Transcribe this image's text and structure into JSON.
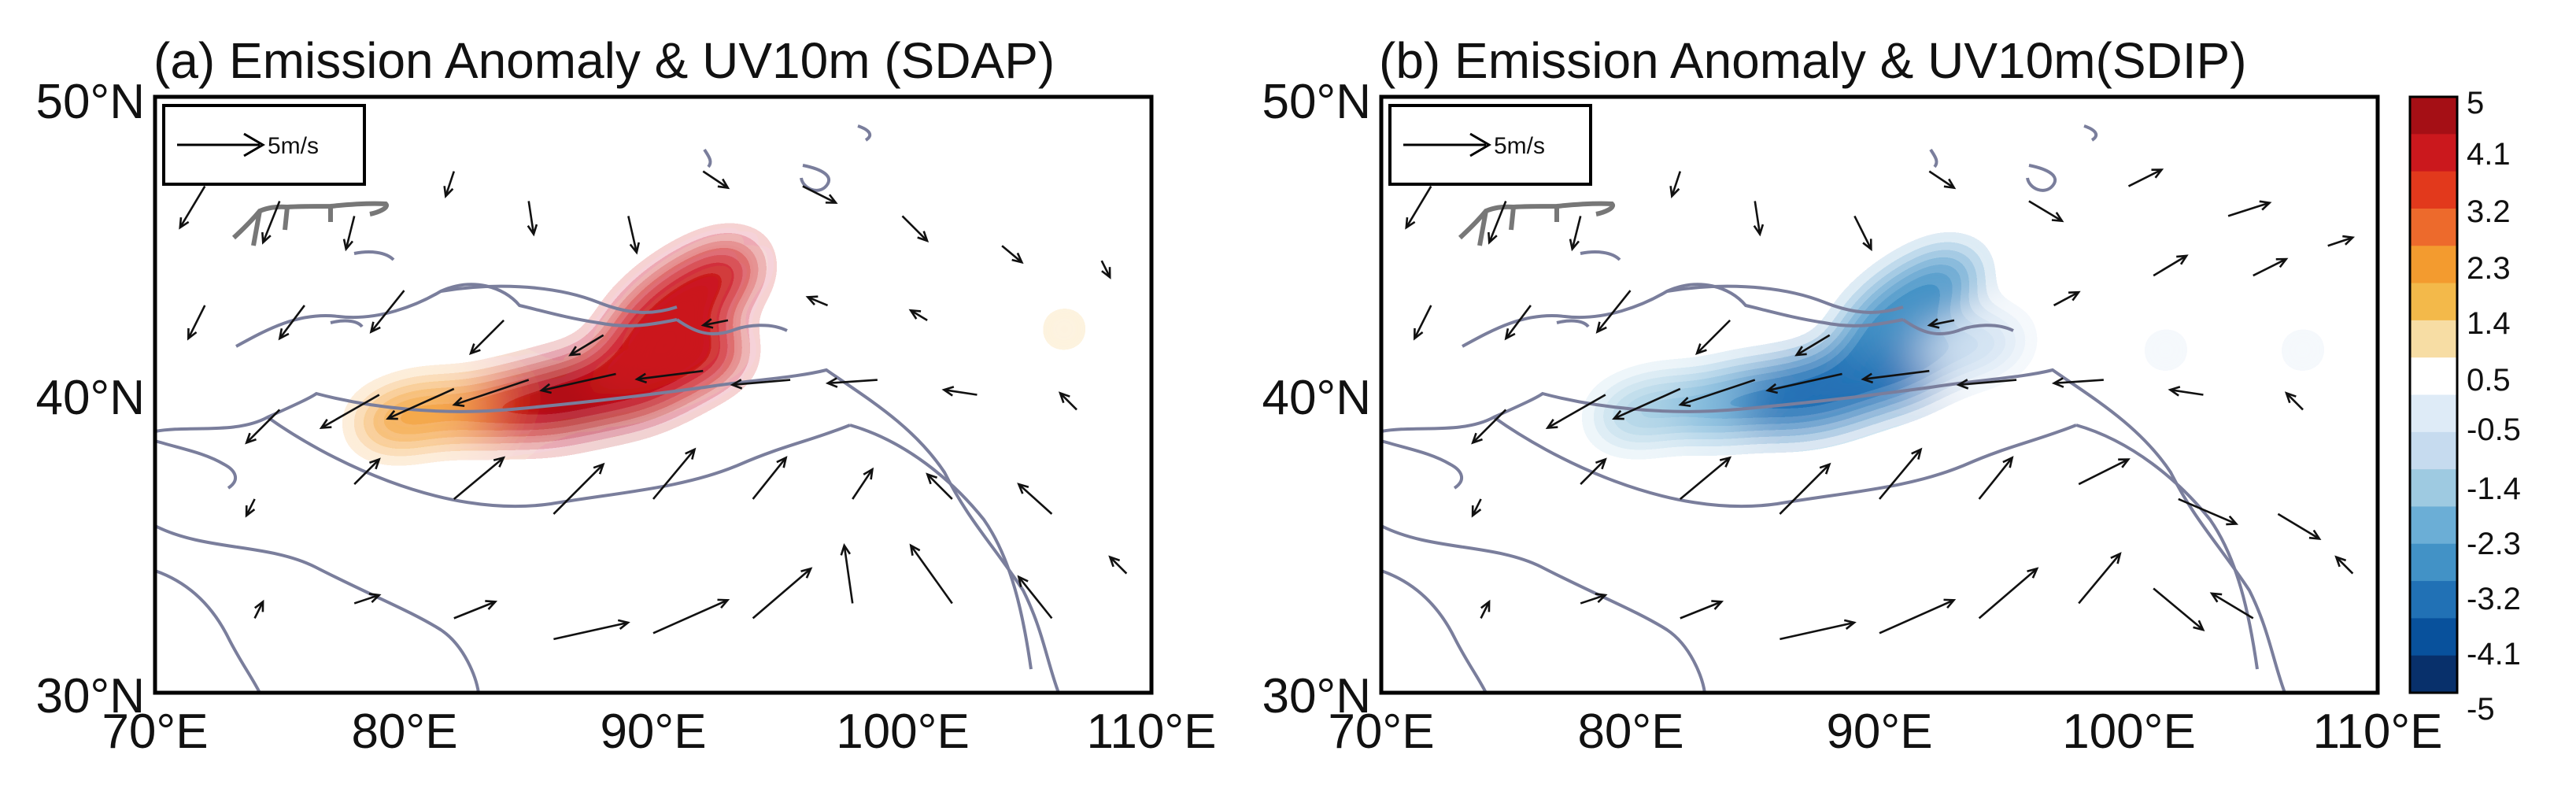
{
  "figure": {
    "panels": [
      {
        "id": "a",
        "title": "(a) Emission  Anomaly & UV10m (SDAP)",
        "reference_arrow_label": "5m/s",
        "anomaly_sign": "positive",
        "x_ticks": [
          "70°E",
          "80°E",
          "90°E",
          "100°E",
          "110°E"
        ],
        "y_ticks": [
          "50°N",
          "40°N",
          "30°N"
        ]
      },
      {
        "id": "b",
        "title": "(b) Emission  Anomaly & UV10m(SDIP)",
        "reference_arrow_label": "5m/s",
        "anomaly_sign": "negative",
        "x_ticks": [
          "70°E",
          "80°E",
          "90°E",
          "100°E",
          "110°E"
        ],
        "y_ticks": [
          "50°N",
          "40°N",
          "30°N"
        ]
      }
    ],
    "colorbar": {
      "labels": [
        "5",
        "4.1",
        "3.2",
        "2.3",
        "1.4",
        "0.5",
        "-0.5",
        "-1.4",
        "-2.3",
        "-3.2",
        "-4.1",
        "-5"
      ],
      "levels": [
        5,
        4.1,
        3.2,
        2.3,
        1.4,
        0.5,
        -0.5,
        -1.4,
        -2.3,
        -3.2,
        -4.1,
        -5
      ],
      "colors": [
        "#a50f15",
        "#cb181d",
        "#e2391c",
        "#ed6a2c",
        "#f39b2f",
        "#f3b94a",
        "#f7dda4",
        "#ffffff",
        "#deebf7",
        "#c6dbef",
        "#9ecae1",
        "#6baed6",
        "#4292c6",
        "#2171b5",
        "#08519c",
        "#08306b"
      ]
    }
  },
  "chart_data": [
    {
      "type": "map",
      "title": "(a) Emission  Anomaly & UV10m (SDAP)",
      "lon_range": [
        70,
        110
      ],
      "lat_range": [
        30,
        50
      ],
      "x_ticks": [
        70,
        80,
        90,
        100,
        110
      ],
      "y_ticks": [
        30,
        40,
        50
      ],
      "reference_vector_ms": 5,
      "anomaly_centers": [
        {
          "lon": 84,
          "lat": 39.6,
          "value": 2.3
        },
        {
          "lon": 86.5,
          "lat": 39.9,
          "value": 4.5
        },
        {
          "lon": 88.5,
          "lat": 40.3,
          "value": 5
        },
        {
          "lon": 90.2,
          "lat": 41.0,
          "value": 4.6
        },
        {
          "lon": 91.2,
          "lat": 43.1,
          "value": 4.8
        },
        {
          "lon": 80.5,
          "lat": 39.3,
          "value": 1.6
        },
        {
          "lon": 106.5,
          "lat": 42.2,
          "value": 0.9
        }
      ],
      "wind_vectors": [
        {
          "lon": 72,
          "lat": 47,
          "u": -1.5,
          "v": -2.5
        },
        {
          "lon": 75,
          "lat": 46.5,
          "u": -1.0,
          "v": -2.5
        },
        {
          "lon": 78,
          "lat": 46,
          "u": -0.5,
          "v": -2.0
        },
        {
          "lon": 82,
          "lat": 47.5,
          "u": -0.5,
          "v": -1.5
        },
        {
          "lon": 85,
          "lat": 46.5,
          "u": 0.3,
          "v": -2.0
        },
        {
          "lon": 89,
          "lat": 46,
          "u": 0.5,
          "v": -2.2
        },
        {
          "lon": 92,
          "lat": 47.5,
          "u": 1.5,
          "v": -1.0
        },
        {
          "lon": 96,
          "lat": 47,
          "u": 2.0,
          "v": -1.0
        },
        {
          "lon": 100,
          "lat": 46,
          "u": 1.5,
          "v": -1.5
        },
        {
          "lon": 104,
          "lat": 45,
          "u": 1.2,
          "v": -1.0
        },
        {
          "lon": 108,
          "lat": 44.5,
          "u": 0.5,
          "v": -1.0
        },
        {
          "lon": 72,
          "lat": 43,
          "u": -1.0,
          "v": -2.0
        },
        {
          "lon": 76,
          "lat": 43,
          "u": -1.5,
          "v": -2.0
        },
        {
          "lon": 80,
          "lat": 43.5,
          "u": -2.0,
          "v": -2.5
        },
        {
          "lon": 84,
          "lat": 42.5,
          "u": -2.0,
          "v": -2.0
        },
        {
          "lon": 88,
          "lat": 42,
          "u": -2.0,
          "v": -1.2
        },
        {
          "lon": 93,
          "lat": 42.5,
          "u": -1.5,
          "v": -0.3
        },
        {
          "lon": 97,
          "lat": 43,
          "u": -1.2,
          "v": 0.5
        },
        {
          "lon": 101,
          "lat": 42.5,
          "u": -1.0,
          "v": 0.6
        },
        {
          "lon": 75,
          "lat": 39.5,
          "u": -2.0,
          "v": -2.0
        },
        {
          "lon": 79,
          "lat": 40,
          "u": -3.5,
          "v": -2.0
        },
        {
          "lon": 82,
          "lat": 40.2,
          "u": -4.0,
          "v": -1.8
        },
        {
          "lon": 85,
          "lat": 40.5,
          "u": -4.5,
          "v": -1.5
        },
        {
          "lon": 88.5,
          "lat": 40.7,
          "u": -4.5,
          "v": -1.0
        },
        {
          "lon": 92,
          "lat": 40.8,
          "u": -4.0,
          "v": -0.5
        },
        {
          "lon": 95.5,
          "lat": 40.5,
          "u": -3.5,
          "v": -0.3
        },
        {
          "lon": 99,
          "lat": 40.5,
          "u": -3.0,
          "v": -0.2
        },
        {
          "lon": 103,
          "lat": 40,
          "u": -2.0,
          "v": 0.3
        },
        {
          "lon": 107,
          "lat": 39.5,
          "u": -1.0,
          "v": 1.0
        },
        {
          "lon": 74,
          "lat": 36.5,
          "u": -0.5,
          "v": -1.0
        },
        {
          "lon": 78,
          "lat": 37,
          "u": 1.5,
          "v": 1.5
        },
        {
          "lon": 82,
          "lat": 36.5,
          "u": 3.0,
          "v": 2.5
        },
        {
          "lon": 86,
          "lat": 36,
          "u": 3.0,
          "v": 3.0
        },
        {
          "lon": 90,
          "lat": 36.5,
          "u": 2.5,
          "v": 3.0
        },
        {
          "lon": 94,
          "lat": 36.5,
          "u": 2.0,
          "v": 2.5
        },
        {
          "lon": 98,
          "lat": 36.5,
          "u": 1.2,
          "v": 1.8
        },
        {
          "lon": 102,
          "lat": 36.5,
          "u": -1.5,
          "v": 1.5
        },
        {
          "lon": 106,
          "lat": 36,
          "u": -2.0,
          "v": 1.8
        },
        {
          "lon": 74,
          "lat": 32.5,
          "u": 0.5,
          "v": 1.0
        },
        {
          "lon": 78,
          "lat": 33,
          "u": 1.5,
          "v": 0.5
        },
        {
          "lon": 82,
          "lat": 32.5,
          "u": 2.5,
          "v": 1.0
        },
        {
          "lon": 86,
          "lat": 31.8,
          "u": 4.5,
          "v": 1.0
        },
        {
          "lon": 90,
          "lat": 32,
          "u": 4.5,
          "v": 2.0
        },
        {
          "lon": 94,
          "lat": 32.5,
          "u": 3.5,
          "v": 3.0
        },
        {
          "lon": 98,
          "lat": 33,
          "u": -0.5,
          "v": 3.5
        },
        {
          "lon": 102,
          "lat": 33,
          "u": -2.5,
          "v": 3.5
        },
        {
          "lon": 106,
          "lat": 32.5,
          "u": -2.0,
          "v": 2.5
        },
        {
          "lon": 109,
          "lat": 34,
          "u": -1.0,
          "v": 1.0
        }
      ]
    },
    {
      "type": "map",
      "title": "(b) Emission  Anomaly & UV10m(SDIP)",
      "lon_range": [
        70,
        110
      ],
      "lat_range": [
        30,
        50
      ],
      "x_ticks": [
        70,
        80,
        90,
        100,
        110
      ],
      "y_ticks": [
        30,
        40,
        50
      ],
      "reference_vector_ms": 5,
      "anomaly_centers": [
        {
          "lon": 81,
          "lat": 39.5,
          "value": -1.5
        },
        {
          "lon": 84.5,
          "lat": 39.8,
          "value": -2.8
        },
        {
          "lon": 87.5,
          "lat": 40.1,
          "value": -4.4
        },
        {
          "lon": 89.8,
          "lat": 40.7,
          "value": -4.2
        },
        {
          "lon": 91.2,
          "lat": 43.0,
          "value": -3.8
        },
        {
          "lon": 93.5,
          "lat": 41.6,
          "value": -1.2
        },
        {
          "lon": 101.5,
          "lat": 41.5,
          "value": -0.8
        },
        {
          "lon": 107,
          "lat": 41.5,
          "value": -0.8
        }
      ],
      "wind_vectors": [
        {
          "lon": 72,
          "lat": 47,
          "u": -1.5,
          "v": -2.5
        },
        {
          "lon": 75,
          "lat": 46.5,
          "u": -1.0,
          "v": -2.5
        },
        {
          "lon": 78,
          "lat": 46,
          "u": -0.5,
          "v": -2.0
        },
        {
          "lon": 82,
          "lat": 47.5,
          "u": -0.5,
          "v": -1.5
        },
        {
          "lon": 85,
          "lat": 46.5,
          "u": 0.3,
          "v": -2.0
        },
        {
          "lon": 89,
          "lat": 46,
          "u": 1.0,
          "v": -2.0
        },
        {
          "lon": 92,
          "lat": 47.5,
          "u": 1.5,
          "v": -1.0
        },
        {
          "lon": 96,
          "lat": 46.5,
          "u": 2.0,
          "v": -1.2
        },
        {
          "lon": 100,
          "lat": 47,
          "u": 2.0,
          "v": 1.0
        },
        {
          "lon": 104,
          "lat": 46,
          "u": 2.5,
          "v": 0.8
        },
        {
          "lon": 108,
          "lat": 45,
          "u": 1.5,
          "v": 0.5
        },
        {
          "lon": 72,
          "lat": 43,
          "u": -1.0,
          "v": -2.0
        },
        {
          "lon": 76,
          "lat": 43,
          "u": -1.5,
          "v": -2.0
        },
        {
          "lon": 80,
          "lat": 43.5,
          "u": -2.0,
          "v": -2.5
        },
        {
          "lon": 84,
          "lat": 42.5,
          "u": -2.0,
          "v": -2.0
        },
        {
          "lon": 88,
          "lat": 42,
          "u": -2.0,
          "v": -1.2
        },
        {
          "lon": 93,
          "lat": 42.5,
          "u": -1.5,
          "v": -0.3
        },
        {
          "lon": 97,
          "lat": 43,
          "u": 1.5,
          "v": 0.8
        },
        {
          "lon": 101,
          "lat": 44,
          "u": 2.0,
          "v": 1.2
        },
        {
          "lon": 105,
          "lat": 44,
          "u": 2.0,
          "v": 1.0
        },
        {
          "lon": 75,
          "lat": 39.5,
          "u": -2.0,
          "v": -2.0
        },
        {
          "lon": 79,
          "lat": 40,
          "u": -3.5,
          "v": -2.0
        },
        {
          "lon": 82,
          "lat": 40.2,
          "u": -4.0,
          "v": -1.8
        },
        {
          "lon": 85,
          "lat": 40.5,
          "u": -4.5,
          "v": -1.5
        },
        {
          "lon": 88.5,
          "lat": 40.7,
          "u": -4.5,
          "v": -1.0
        },
        {
          "lon": 92,
          "lat": 40.8,
          "u": -4.0,
          "v": -0.5
        },
        {
          "lon": 95.5,
          "lat": 40.5,
          "u": -3.5,
          "v": -0.3
        },
        {
          "lon": 99,
          "lat": 40.5,
          "u": -3.0,
          "v": -0.2
        },
        {
          "lon": 103,
          "lat": 40,
          "u": -2.0,
          "v": 0.3
        },
        {
          "lon": 107,
          "lat": 39.5,
          "u": -1.0,
          "v": 1.0
        },
        {
          "lon": 74,
          "lat": 36.5,
          "u": -0.5,
          "v": -1.0
        },
        {
          "lon": 78,
          "lat": 37,
          "u": 1.5,
          "v": 1.5
        },
        {
          "lon": 82,
          "lat": 36.5,
          "u": 3.0,
          "v": 2.5
        },
        {
          "lon": 86,
          "lat": 36,
          "u": 3.0,
          "v": 3.0
        },
        {
          "lon": 90,
          "lat": 36.5,
          "u": 2.5,
          "v": 3.0
        },
        {
          "lon": 94,
          "lat": 36.5,
          "u": 2.0,
          "v": 2.5
        },
        {
          "lon": 98,
          "lat": 37,
          "u": 3.0,
          "v": 1.5
        },
        {
          "lon": 102,
          "lat": 36.5,
          "u": 3.5,
          "v": -1.5
        },
        {
          "lon": 106,
          "lat": 36,
          "u": 2.5,
          "v": -1.5
        },
        {
          "lon": 74,
          "lat": 32.5,
          "u": 0.5,
          "v": 1.0
        },
        {
          "lon": 78,
          "lat": 33,
          "u": 1.5,
          "v": 0.5
        },
        {
          "lon": 82,
          "lat": 32.5,
          "u": 2.5,
          "v": 1.0
        },
        {
          "lon": 86,
          "lat": 31.8,
          "u": 4.5,
          "v": 1.0
        },
        {
          "lon": 90,
          "lat": 32,
          "u": 4.5,
          "v": 2.0
        },
        {
          "lon": 94,
          "lat": 32.5,
          "u": 3.5,
          "v": 3.0
        },
        {
          "lon": 98,
          "lat": 33,
          "u": 2.5,
          "v": 3.0
        },
        {
          "lon": 101,
          "lat": 33.5,
          "u": 3.0,
          "v": -2.5
        },
        {
          "lon": 105,
          "lat": 32.5,
          "u": -2.5,
          "v": 1.5
        },
        {
          "lon": 109,
          "lat": 34,
          "u": -1.0,
          "v": 1.0
        }
      ]
    }
  ]
}
